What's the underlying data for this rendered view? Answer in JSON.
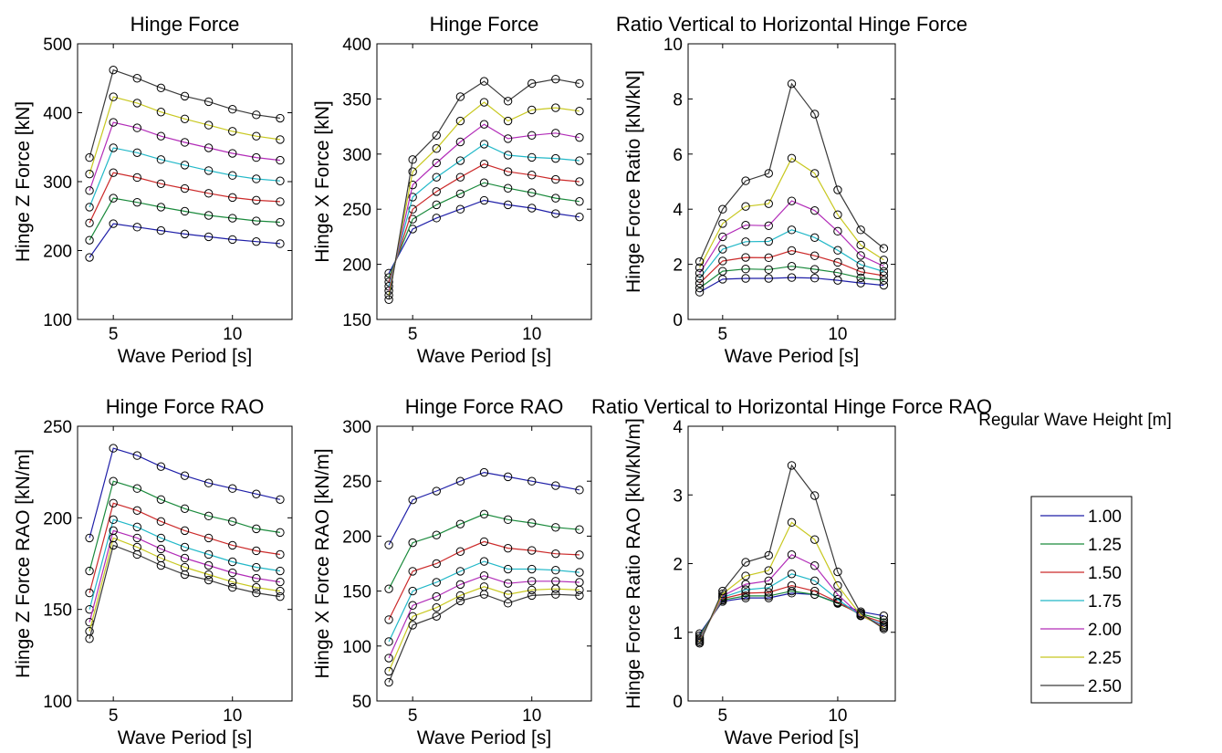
{
  "legend": {
    "title": "Regular Wave Height [m]",
    "entries": [
      {
        "label": "1.00",
        "color": "#1f1fa8"
      },
      {
        "label": "1.25",
        "color": "#1a8a3c"
      },
      {
        "label": "1.50",
        "color": "#cc2a2a"
      },
      {
        "label": "1.75",
        "color": "#22b8c8"
      },
      {
        "label": "2.00",
        "color": "#b22cb8"
      },
      {
        "label": "2.25",
        "color": "#c8c820"
      },
      {
        "label": "2.50",
        "color": "#3a3a3a"
      }
    ]
  },
  "chart_data": [
    {
      "type": "line",
      "title": "Hinge Force",
      "xlabel": "Wave Period [s]",
      "ylabel": "Hinge Z Force [kN]",
      "xlim": [
        3.5,
        12.5
      ],
      "ylim": [
        100,
        500
      ],
      "xticks": [
        5,
        10
      ],
      "yticks": [
        100,
        200,
        300,
        400,
        500
      ],
      "x": [
        4,
        5,
        6,
        7,
        8,
        9,
        10,
        11,
        12
      ],
      "series": [
        {
          "name": "1.00",
          "values": [
            190,
            239,
            234,
            229,
            224,
            220,
            216,
            213,
            210
          ]
        },
        {
          "name": "1.25",
          "values": [
            215,
            276,
            270,
            263,
            257,
            251,
            247,
            243,
            241
          ]
        },
        {
          "name": "1.50",
          "values": [
            240,
            313,
            306,
            297,
            290,
            283,
            277,
            273,
            271
          ]
        },
        {
          "name": "1.75",
          "values": [
            263,
            349,
            342,
            332,
            324,
            316,
            309,
            304,
            301
          ]
        },
        {
          "name": "2.00",
          "values": [
            287,
            386,
            378,
            366,
            357,
            349,
            341,
            335,
            331
          ]
        },
        {
          "name": "2.25",
          "values": [
            311,
            423,
            414,
            401,
            391,
            382,
            373,
            366,
            361
          ]
        },
        {
          "name": "2.50",
          "values": [
            335,
            462,
            450,
            436,
            424,
            416,
            405,
            397,
            392
          ]
        }
      ]
    },
    {
      "type": "line",
      "title": "Hinge Force",
      "xlabel": "Wave Period [s]",
      "ylabel": "Hinge X Force [kN]",
      "xlim": [
        3.5,
        12.5
      ],
      "ylim": [
        150,
        400
      ],
      "xticks": [
        5,
        10
      ],
      "yticks": [
        150,
        200,
        250,
        300,
        350,
        400
      ],
      "x": [
        4,
        5,
        6,
        7,
        8,
        9,
        10,
        11,
        12
      ],
      "series": [
        {
          "name": "1.00",
          "values": [
            192,
            232,
            242,
            250,
            258,
            254,
            251,
            246,
            243
          ]
        },
        {
          "name": "1.25",
          "values": [
            188,
            241,
            254,
            264,
            274,
            269,
            265,
            260,
            257
          ]
        },
        {
          "name": "1.50",
          "values": [
            184,
            250,
            266,
            279,
            291,
            284,
            281,
            277,
            275
          ]
        },
        {
          "name": "1.75",
          "values": [
            180,
            261,
            279,
            294,
            309,
            299,
            297,
            296,
            294
          ]
        },
        {
          "name": "2.00",
          "values": [
            176,
            272,
            292,
            311,
            327,
            314,
            317,
            319,
            315
          ]
        },
        {
          "name": "2.25",
          "values": [
            172,
            284,
            305,
            330,
            347,
            330,
            340,
            342,
            339
          ]
        },
        {
          "name": "2.50",
          "values": [
            168,
            295,
            317,
            352,
            366,
            348,
            364,
            368,
            364
          ]
        }
      ]
    },
    {
      "type": "line",
      "title": "Ratio Vertical to Horizontal Hinge Force",
      "xlabel": "Wave Period [s]",
      "ylabel": "Hinge Force Ratio [kN/kN]",
      "xlim": [
        3.5,
        12.5
      ],
      "ylim": [
        0,
        10
      ],
      "xticks": [
        5,
        10
      ],
      "yticks": [
        0,
        2,
        4,
        6,
        8,
        10
      ],
      "x": [
        4,
        5,
        6,
        7,
        8,
        9,
        10,
        11,
        12
      ],
      "series": [
        {
          "name": "1.00",
          "values": [
            0.99,
            1.46,
            1.49,
            1.49,
            1.52,
            1.5,
            1.42,
            1.32,
            1.24
          ]
        },
        {
          "name": "1.25",
          "values": [
            1.14,
            1.75,
            1.83,
            1.81,
            1.93,
            1.82,
            1.7,
            1.51,
            1.42
          ]
        },
        {
          "name": "1.50",
          "values": [
            1.31,
            2.12,
            2.25,
            2.24,
            2.5,
            2.31,
            2.07,
            1.73,
            1.59
          ]
        },
        {
          "name": "1.75",
          "values": [
            1.49,
            2.55,
            2.82,
            2.83,
            3.25,
            2.97,
            2.51,
            1.99,
            1.74
          ]
        },
        {
          "name": "2.00",
          "values": [
            1.68,
            3.0,
            3.42,
            3.4,
            4.3,
            3.95,
            3.2,
            2.32,
            1.93
          ]
        },
        {
          "name": "2.25",
          "values": [
            1.88,
            3.48,
            4.1,
            4.2,
            5.85,
            5.3,
            3.8,
            2.7,
            2.16
          ]
        },
        {
          "name": "2.50",
          "values": [
            2.1,
            4.0,
            5.03,
            5.3,
            8.55,
            7.45,
            4.7,
            3.25,
            2.58
          ]
        }
      ]
    },
    {
      "type": "line",
      "title": "Hinge Force RAO",
      "xlabel": "Wave Period [s]",
      "ylabel": "Hinge Z Force RAO [kN/m]",
      "xlim": [
        3.5,
        12.5
      ],
      "ylim": [
        100,
        250
      ],
      "xticks": [
        5,
        10
      ],
      "yticks": [
        100,
        150,
        200,
        250
      ],
      "x": [
        4,
        5,
        6,
        7,
        8,
        9,
        10,
        11,
        12
      ],
      "series": [
        {
          "name": "1.00",
          "values": [
            189,
            238,
            234,
            228,
            223,
            219,
            216,
            213,
            210
          ]
        },
        {
          "name": "1.25",
          "values": [
            171,
            220,
            216,
            210,
            205,
            201,
            198,
            194,
            192
          ]
        },
        {
          "name": "1.50",
          "values": [
            159,
            208,
            204,
            198,
            193,
            189,
            185,
            182,
            180
          ]
        },
        {
          "name": "1.75",
          "values": [
            150,
            199,
            195,
            189,
            184,
            180,
            176,
            173,
            171
          ]
        },
        {
          "name": "2.00",
          "values": [
            143,
            193,
            189,
            183,
            178,
            174,
            170,
            167,
            165
          ]
        },
        {
          "name": "2.25",
          "values": [
            138,
            189,
            184,
            178,
            173,
            169,
            165,
            162,
            160
          ]
        },
        {
          "name": "2.50",
          "values": [
            134,
            185,
            180,
            174,
            169,
            166,
            162,
            159,
            157
          ]
        }
      ]
    },
    {
      "type": "line",
      "title": "Hinge Force RAO",
      "xlabel": "Wave Period [s]",
      "ylabel": "Hinge X Force RAO [kN/m]",
      "xlim": [
        3.5,
        12.5
      ],
      "ylim": [
        50,
        300
      ],
      "xticks": [
        5,
        10
      ],
      "yticks": [
        50,
        100,
        150,
        200,
        250,
        300
      ],
      "x": [
        4,
        5,
        6,
        7,
        8,
        9,
        10,
        11,
        12
      ],
      "series": [
        {
          "name": "1.00",
          "values": [
            192,
            233,
            241,
            250,
            258,
            254,
            250,
            246,
            242
          ]
        },
        {
          "name": "1.25",
          "values": [
            152,
            194,
            201,
            211,
            220,
            215,
            212,
            208,
            206
          ]
        },
        {
          "name": "1.50",
          "values": [
            124,
            168,
            175,
            186,
            195,
            189,
            187,
            184,
            183
          ]
        },
        {
          "name": "1.75",
          "values": [
            104,
            150,
            158,
            168,
            177,
            170,
            170,
            169,
            167
          ]
        },
        {
          "name": "2.00",
          "values": [
            89,
            137,
            145,
            156,
            164,
            157,
            159,
            159,
            158
          ]
        },
        {
          "name": "2.25",
          "values": [
            77,
            127,
            135,
            146,
            154,
            147,
            151,
            152,
            151
          ]
        },
        {
          "name": "2.50",
          "values": [
            67,
            119,
            127,
            141,
            147,
            139,
            146,
            147,
            146
          ]
        }
      ]
    },
    {
      "type": "line",
      "title": "Ratio Vertical to Horizontal Hinge Force RAO",
      "xlabel": "Wave Period [s]",
      "ylabel": "Hinge Force Ratio RAO [kN/kN/m]",
      "xlim": [
        3.5,
        12.5
      ],
      "ylim": [
        0,
        4
      ],
      "xticks": [
        5,
        10
      ],
      "yticks": [
        0,
        1,
        2,
        3,
        4
      ],
      "x": [
        4,
        5,
        6,
        7,
        8,
        9,
        10,
        11,
        12
      ],
      "series": [
        {
          "name": "1.00",
          "values": [
            0.98,
            1.45,
            1.5,
            1.5,
            1.57,
            1.55,
            1.43,
            1.3,
            1.24
          ]
        },
        {
          "name": "1.25",
          "values": [
            0.95,
            1.47,
            1.53,
            1.53,
            1.6,
            1.55,
            1.42,
            1.27,
            1.18
          ]
        },
        {
          "name": "1.50",
          "values": [
            0.92,
            1.49,
            1.57,
            1.58,
            1.68,
            1.6,
            1.44,
            1.25,
            1.14
          ]
        },
        {
          "name": "1.75",
          "values": [
            0.9,
            1.51,
            1.62,
            1.65,
            1.85,
            1.75,
            1.48,
            1.24,
            1.11
          ]
        },
        {
          "name": "2.00",
          "values": [
            0.88,
            1.53,
            1.7,
            1.75,
            2.13,
            1.97,
            1.55,
            1.24,
            1.09
          ]
        },
        {
          "name": "2.25",
          "values": [
            0.86,
            1.56,
            1.82,
            1.9,
            2.6,
            2.35,
            1.68,
            1.25,
            1.07
          ]
        },
        {
          "name": "2.50",
          "values": [
            0.84,
            1.6,
            2.02,
            2.12,
            3.43,
            2.99,
            1.88,
            1.28,
            1.05
          ]
        }
      ]
    }
  ]
}
